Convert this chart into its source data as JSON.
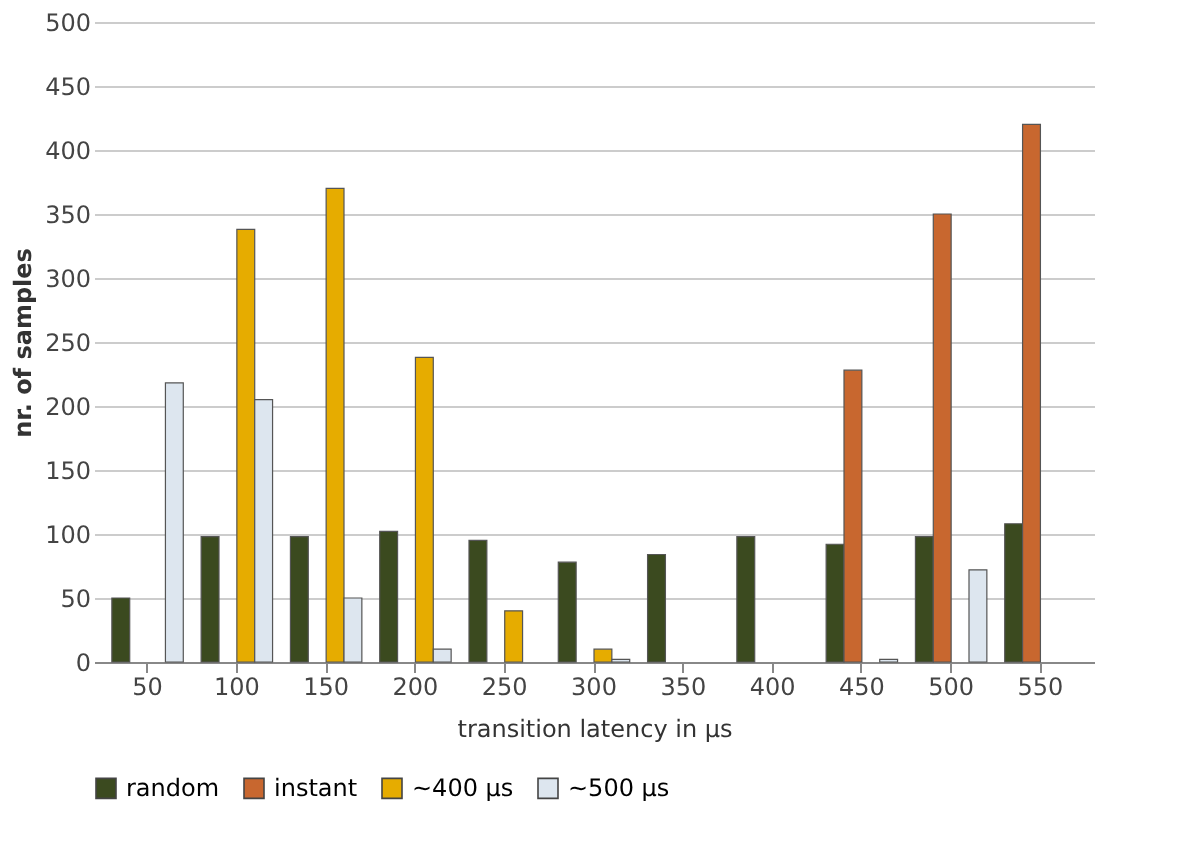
{
  "chart_data": {
    "type": "bar",
    "xlabel": "transition latency in µs",
    "ylabel": "nr. of samples",
    "categories": [
      "50",
      "100",
      "150",
      "200",
      "250",
      "300",
      "350",
      "400",
      "450",
      "500",
      "550"
    ],
    "series": [
      {
        "name": "random",
        "color": "#3b4a1f",
        "values": [
          50,
          98,
          98,
          102,
          95,
          78,
          84,
          98,
          92,
          98,
          108
        ]
      },
      {
        "name": "instant",
        "color": "#c8672f",
        "values": [
          null,
          null,
          null,
          null,
          null,
          null,
          null,
          null,
          228,
          350,
          420
        ]
      },
      {
        "name": "~400 µs",
        "color": "#e6ac00",
        "values": [
          null,
          338,
          370,
          238,
          40,
          10,
          null,
          null,
          null,
          null,
          null
        ]
      },
      {
        "name": "~500 µs",
        "color": "#dde6ef",
        "values": [
          218,
          205,
          50,
          10,
          null,
          2,
          null,
          null,
          2,
          72,
          null
        ]
      }
    ],
    "ylim": [
      0,
      500
    ],
    "yticks": [
      0,
      50,
      100,
      150,
      200,
      250,
      300,
      350,
      400,
      450,
      500
    ],
    "grid": "y",
    "legend": "bottom"
  }
}
